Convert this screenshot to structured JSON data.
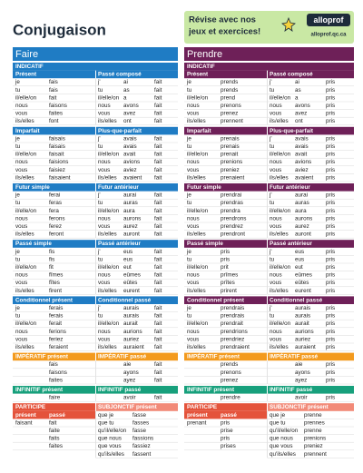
{
  "header": {
    "title": "Conjugaison",
    "ad": [
      "Révise avec nos",
      "jeux et exercices!"
    ],
    "brand": "alloprof",
    "url": "alloprof.qc.ca"
  },
  "verbs": [
    {
      "name": "Faire",
      "color": "#1f7cc4",
      "blocks": [
        {
          "style": "indicatif",
          "group": "INDICATIF",
          "left": {
            "title": "Présent",
            "cols": [
              [
                "je",
                "tu",
                "il/elle/on",
                "nous",
                "vous",
                "ils/elles"
              ],
              [
                "fais",
                "fais",
                "fait",
                "faisons",
                "faites",
                "font"
              ]
            ]
          },
          "right": {
            "title": "Passé composé",
            "cols": [
              [
                "j'",
                "tu",
                "il/elle/on",
                "nous",
                "vous",
                "ils/elles"
              ],
              [
                "ai",
                "as",
                "a",
                "avons",
                "avez",
                "ont"
              ],
              [
                "fait",
                "fait",
                "fait",
                "fait",
                "fait",
                "fait"
              ]
            ]
          }
        },
        {
          "style": "indicatif",
          "left": {
            "title": "Imparfait",
            "cols": [
              [
                "je",
                "tu",
                "il/elle/on",
                "nous",
                "vous",
                "ils/elles"
              ],
              [
                "faisais",
                "faisais",
                "faisait",
                "faisions",
                "faisiez",
                "faisaient"
              ]
            ]
          },
          "right": {
            "title": "Plus-que-parfait",
            "cols": [
              [
                "j'",
                "tu",
                "il/elle/on",
                "nous",
                "vous",
                "ils/elles"
              ],
              [
                "avais",
                "avais",
                "avait",
                "avions",
                "aviez",
                "avaient"
              ],
              [
                "fait",
                "fait",
                "fait",
                "fait",
                "fait",
                "fait"
              ]
            ]
          }
        },
        {
          "style": "indicatif",
          "left": {
            "title": "Futur simple",
            "cols": [
              [
                "je",
                "tu",
                "il/elle/on",
                "nous",
                "vous",
                "ils/elles"
              ],
              [
                "ferai",
                "feras",
                "fera",
                "ferons",
                "ferez",
                "feront"
              ]
            ]
          },
          "right": {
            "title": "Futur antérieur",
            "cols": [
              [
                "j'",
                "tu",
                "il/elle/on",
                "nous",
                "vous",
                "ils/elles"
              ],
              [
                "aurai",
                "auras",
                "aura",
                "aurons",
                "aurez",
                "auront"
              ],
              [
                "fait",
                "fait",
                "fait",
                "fait",
                "fait",
                "fait"
              ]
            ]
          }
        },
        {
          "style": "indicatif",
          "left": {
            "title": "Passé simple",
            "cols": [
              [
                "je",
                "tu",
                "il/elle/on",
                "nous",
                "vous",
                "ils/elles"
              ],
              [
                "fis",
                "fis",
                "fit",
                "fîmes",
                "fîtes",
                "firent"
              ]
            ]
          },
          "right": {
            "title": "Passé antérieur",
            "cols": [
              [
                "j'",
                "tu",
                "il/elle/on",
                "nous",
                "vous",
                "ils/elles"
              ],
              [
                "eus",
                "eus",
                "eut",
                "eûmes",
                "eûtes",
                "eurent"
              ],
              [
                "fait",
                "fait",
                "fait",
                "fait",
                "fait",
                "fait"
              ]
            ]
          }
        },
        {
          "style": "indicatif",
          "left": {
            "title": "Conditionnel présent",
            "cols": [
              [
                "je",
                "tu",
                "il/elle/on",
                "nous",
                "vous",
                "ils/elles"
              ],
              [
                "ferais",
                "ferais",
                "ferait",
                "ferions",
                "feriez",
                "feraient"
              ]
            ]
          },
          "right": {
            "title": "Conditionnel passé",
            "cols": [
              [
                "j'",
                "tu",
                "il/elle/on",
                "nous",
                "vous",
                "ils/elles"
              ],
              [
                "aurais",
                "aurais",
                "aurait",
                "aurions",
                "auriez",
                "auraient"
              ],
              [
                "fait",
                "fait",
                "fait",
                "fait",
                "fait",
                "fait"
              ]
            ]
          }
        },
        {
          "style": "imperatif",
          "left": {
            "title": "IMPÉRATIF présent",
            "cols": [
              [
                "fais",
                "faisons",
                "faites"
              ]
            ]
          },
          "right": {
            "title": "IMPÉRATIF passé",
            "cols": [
              [
                "aie",
                "ayons",
                "ayez"
              ],
              [
                "fait",
                "fait",
                "fait"
              ]
            ]
          }
        },
        {
          "style": "infinitif",
          "left": {
            "title": "INFINITIF présent",
            "cols": [
              [
                "faire"
              ]
            ]
          },
          "right": {
            "title": "INFINITIF passé",
            "cols": [
              [
                "avoir"
              ],
              [
                "fait"
              ]
            ]
          }
        },
        {
          "style": "participe",
          "left": {
            "title": "PARTICIPE",
            "sub": [
              "présent",
              "passé"
            ],
            "cols": [
              [
                "faisant"
              ],
              [
                "fait",
                "faite",
                "faits",
                "faites"
              ]
            ]
          },
          "right": {
            "title": "SUBJONCTIF présent",
            "cols": [
              [
                "que je",
                "que tu",
                "qu'il/elle/on",
                "que nous",
                "que vous",
                "qu'ils/elles"
              ],
              [
                "fasse",
                "fasses",
                "fasse",
                "fassions",
                "fassiez",
                "fassent"
              ]
            ]
          }
        }
      ]
    },
    {
      "name": "Prendre",
      "color": "#6e2058",
      "blocks": [
        {
          "style": "indicatif",
          "group": "INDICATIF",
          "left": {
            "title": "Présent",
            "cols": [
              [
                "je",
                "tu",
                "il/elle/on",
                "nous",
                "vous",
                "ils/elles"
              ],
              [
                "prends",
                "prends",
                "prend",
                "prenons",
                "prenez",
                "prennent"
              ]
            ]
          },
          "right": {
            "title": "Passé composé",
            "cols": [
              [
                "j'",
                "tu",
                "il/elle/on",
                "nous",
                "vous",
                "ils/elles"
              ],
              [
                "ai",
                "as",
                "a",
                "avons",
                "avez",
                "ont"
              ],
              [
                "pris",
                "pris",
                "pris",
                "pris",
                "pris",
                "pris"
              ]
            ]
          }
        },
        {
          "style": "indicatif",
          "left": {
            "title": "Imparfait",
            "cols": [
              [
                "je",
                "tu",
                "il/elle/on",
                "nous",
                "vous",
                "ils/elles"
              ],
              [
                "prenais",
                "prenais",
                "prenait",
                "prenions",
                "preniez",
                "prenaient"
              ]
            ]
          },
          "right": {
            "title": "Plus-que-parfait",
            "cols": [
              [
                "j'",
                "tu",
                "il/elle/on",
                "nous",
                "vous",
                "ils/elles"
              ],
              [
                "avais",
                "avais",
                "avait",
                "avions",
                "aviez",
                "avaient"
              ],
              [
                "pris",
                "pris",
                "pris",
                "pris",
                "pris",
                "pris"
              ]
            ]
          }
        },
        {
          "style": "indicatif",
          "left": {
            "title": "Futur simple",
            "cols": [
              [
                "je",
                "tu",
                "il/elle/on",
                "nous",
                "vous",
                "ils/elles"
              ],
              [
                "prendrai",
                "prendras",
                "prendra",
                "prendrons",
                "prendrez",
                "prendront"
              ]
            ]
          },
          "right": {
            "title": "Futur antérieur",
            "cols": [
              [
                "j'",
                "tu",
                "il/elle/on",
                "nous",
                "vous",
                "ils/elles"
              ],
              [
                "aurai",
                "auras",
                "aura",
                "aurons",
                "aurez",
                "auront"
              ],
              [
                "pris",
                "pris",
                "pris",
                "pris",
                "pris",
                "pris"
              ]
            ]
          }
        },
        {
          "style": "indicatif",
          "left": {
            "title": "Passé simple",
            "cols": [
              [
                "je",
                "tu",
                "il/elle/on",
                "nous",
                "vous",
                "ils/elles"
              ],
              [
                "pris",
                "pris",
                "prit",
                "prîmes",
                "prîtes",
                "prirent"
              ]
            ]
          },
          "right": {
            "title": "Passé antérieur",
            "cols": [
              [
                "j'",
                "tu",
                "il/elle/on",
                "nous",
                "vous",
                "ils/elles"
              ],
              [
                "eus",
                "eus",
                "eut",
                "eûmes",
                "eûtes",
                "eurent"
              ],
              [
                "pris",
                "pris",
                "pris",
                "pris",
                "pris",
                "pris"
              ]
            ]
          }
        },
        {
          "style": "indicatif",
          "left": {
            "title": "Conditionnel présent",
            "cols": [
              [
                "je",
                "tu",
                "il/elle/on",
                "nous",
                "vous",
                "ils/elles"
              ],
              [
                "prendrais",
                "prendrais",
                "prendrait",
                "prendrions",
                "prendriez",
                "prendraient"
              ]
            ]
          },
          "right": {
            "title": "Conditionnel passé",
            "cols": [
              [
                "j'",
                "tu",
                "il/elle/on",
                "nous",
                "vous",
                "ils/elles"
              ],
              [
                "aurais",
                "aurais",
                "aurait",
                "aurions",
                "auriez",
                "auraient"
              ],
              [
                "pris",
                "pris",
                "pris",
                "pris",
                "pris",
                "pris"
              ]
            ]
          }
        },
        {
          "style": "imperatif",
          "left": {
            "title": "IMPÉRATIF présent",
            "cols": [
              [
                "prends",
                "prenons",
                "prenez"
              ]
            ]
          },
          "right": {
            "title": "IMPÉRATIF passé",
            "cols": [
              [
                "aie",
                "ayons",
                "ayez"
              ],
              [
                "pris",
                "pris",
                "pris"
              ]
            ]
          }
        },
        {
          "style": "infinitif",
          "left": {
            "title": "INFINITIF présent",
            "cols": [
              [
                "prendre"
              ]
            ]
          },
          "right": {
            "title": "INFINITIF passé",
            "cols": [
              [
                "avoir"
              ],
              [
                "pris"
              ]
            ]
          }
        },
        {
          "style": "participe",
          "left": {
            "title": "PARTICIPE",
            "sub": [
              "présent",
              "passé"
            ],
            "cols": [
              [
                "prenant"
              ],
              [
                "pris",
                "prise",
                "pris",
                "prises"
              ]
            ]
          },
          "right": {
            "title": "SUBJONCTIF présent",
            "cols": [
              [
                "que je",
                "que tu",
                "qu'il/elle/on",
                "que nous",
                "que vous",
                "qu'ils/elles"
              ],
              [
                "prenne",
                "prennes",
                "prenne",
                "prenions",
                "preniez",
                "prennent"
              ]
            ]
          }
        }
      ]
    }
  ]
}
